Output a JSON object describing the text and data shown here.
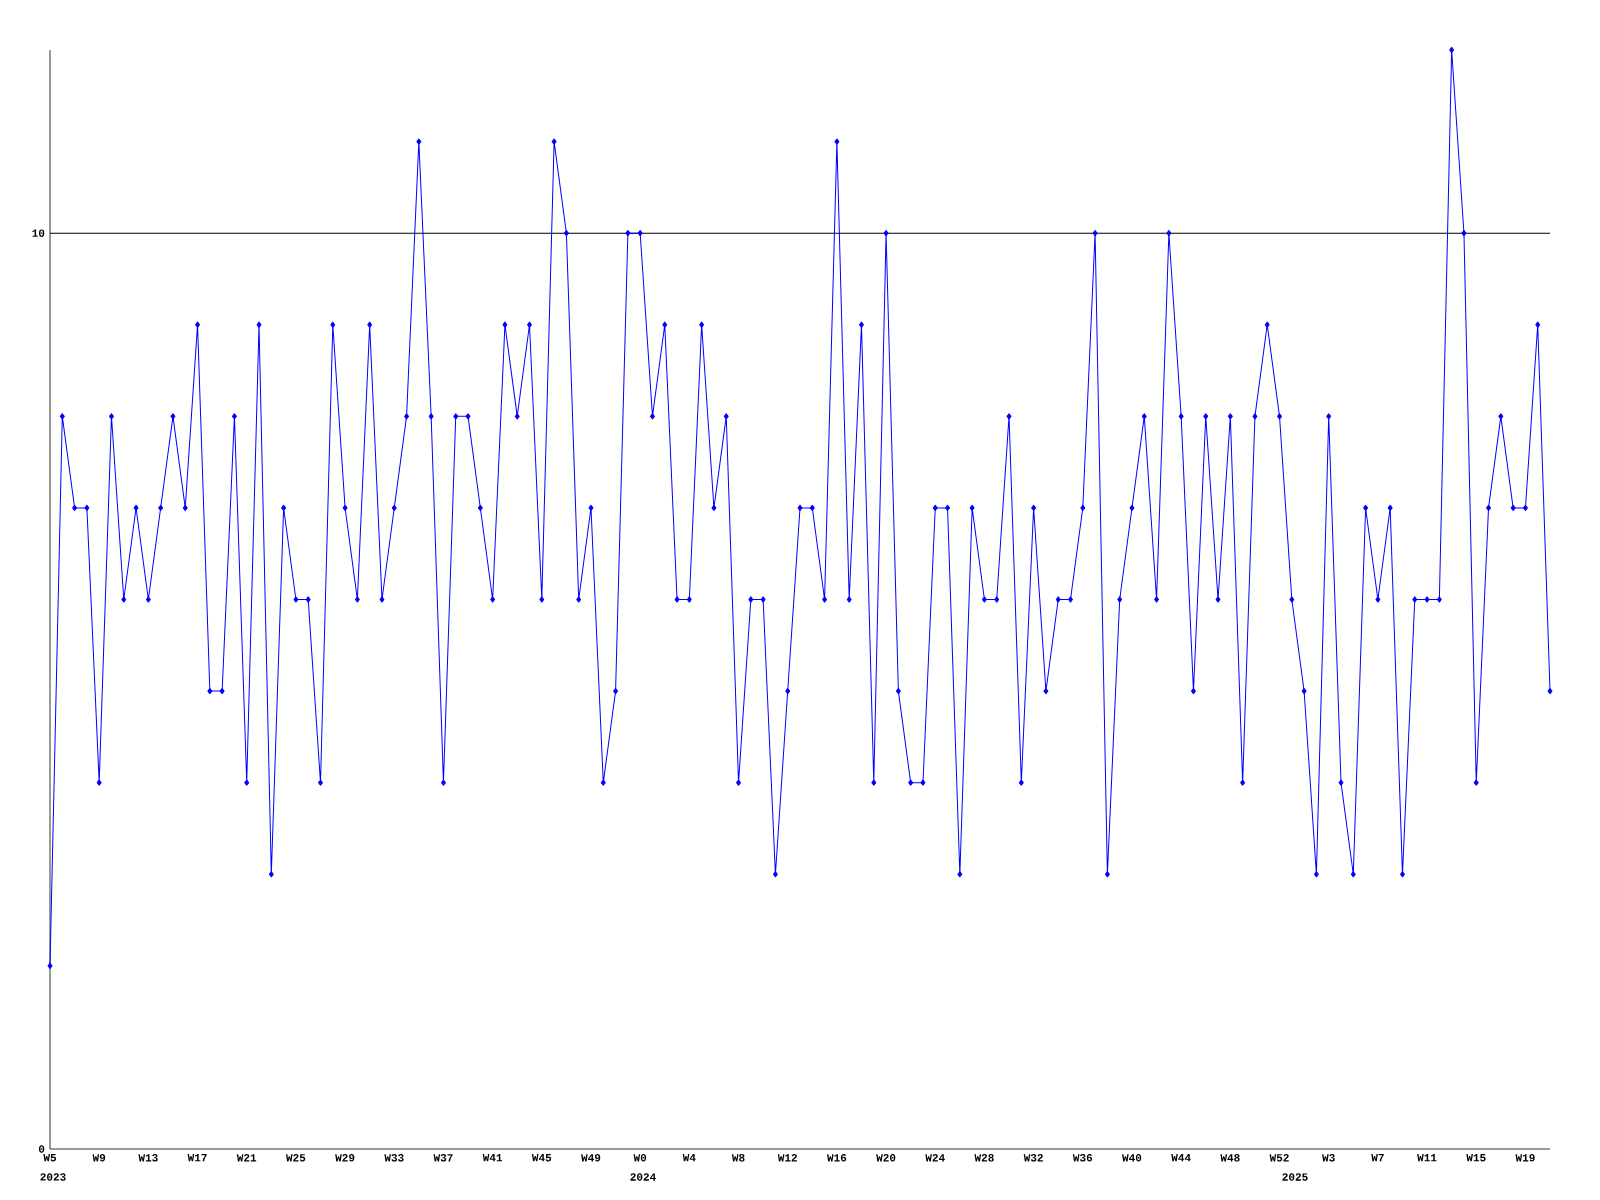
{
  "chart_data": {
    "type": "line",
    "color": "#0000ff",
    "marker": "diamond",
    "line_style": "solid",
    "categories": [
      "W5",
      null,
      null,
      null,
      "W9",
      null,
      null,
      null,
      "W13",
      null,
      null,
      null,
      "W17",
      null,
      null,
      null,
      "W21",
      null,
      null,
      null,
      "W25",
      null,
      null,
      null,
      "W29",
      null,
      null,
      null,
      "W33",
      null,
      null,
      null,
      "W37",
      null,
      null,
      null,
      "W41",
      null,
      null,
      null,
      "W45",
      null,
      null,
      null,
      "W49",
      null,
      null,
      null,
      "W0",
      null,
      null,
      null,
      "W4",
      null,
      null,
      null,
      "W8",
      null,
      null,
      null,
      "W12",
      null,
      null,
      null,
      "W16",
      null,
      null,
      null,
      "W20",
      null,
      null,
      null,
      "W24",
      null,
      null,
      null,
      "W28",
      null,
      null,
      null,
      "W32",
      null,
      null,
      null,
      "W36",
      null,
      null,
      null,
      "W40",
      null,
      null,
      null,
      "W44",
      null,
      null,
      null,
      "W48",
      null,
      null,
      null,
      "W52",
      null,
      null,
      null,
      "W3",
      null,
      null,
      null,
      "W7",
      null,
      null,
      null,
      "W11",
      null,
      null,
      null,
      "W15",
      null,
      null,
      null,
      "W19",
      null,
      null
    ],
    "values": [
      2,
      8,
      7,
      7,
      4,
      8,
      6,
      7,
      6,
      7,
      8,
      7,
      9,
      5,
      5,
      8,
      4,
      9,
      3,
      7,
      6,
      6,
      4,
      9,
      7,
      6,
      9,
      6,
      7,
      8,
      11,
      8,
      4,
      8,
      8,
      7,
      6,
      9,
      8,
      9,
      6,
      11,
      10,
      6,
      7,
      4,
      5,
      10,
      10,
      8,
      9,
      6,
      6,
      9,
      7,
      8,
      4,
      6,
      6,
      3,
      5,
      7,
      7,
      6,
      11,
      6,
      9,
      4,
      10,
      5,
      4,
      4,
      7,
      7,
      3,
      7,
      6,
      6,
      8,
      4,
      7,
      5,
      6,
      6,
      7,
      10,
      3,
      6,
      7,
      8,
      6,
      10,
      8,
      5,
      8,
      6,
      8,
      4,
      8,
      9,
      8,
      6,
      5,
      3,
      8,
      4,
      3,
      7,
      6,
      7,
      3,
      6,
      6,
      6,
      12,
      10,
      4,
      7,
      8,
      7,
      7,
      9,
      5
    ],
    "ylim": [
      0,
      12
    ],
    "yticks": [
      0,
      10
    ],
    "annotations": [
      "2023",
      "2024",
      "2025"
    ],
    "ref_lines": [
      {
        "axis": "y",
        "value": 10,
        "color": "#000000"
      }
    ]
  }
}
